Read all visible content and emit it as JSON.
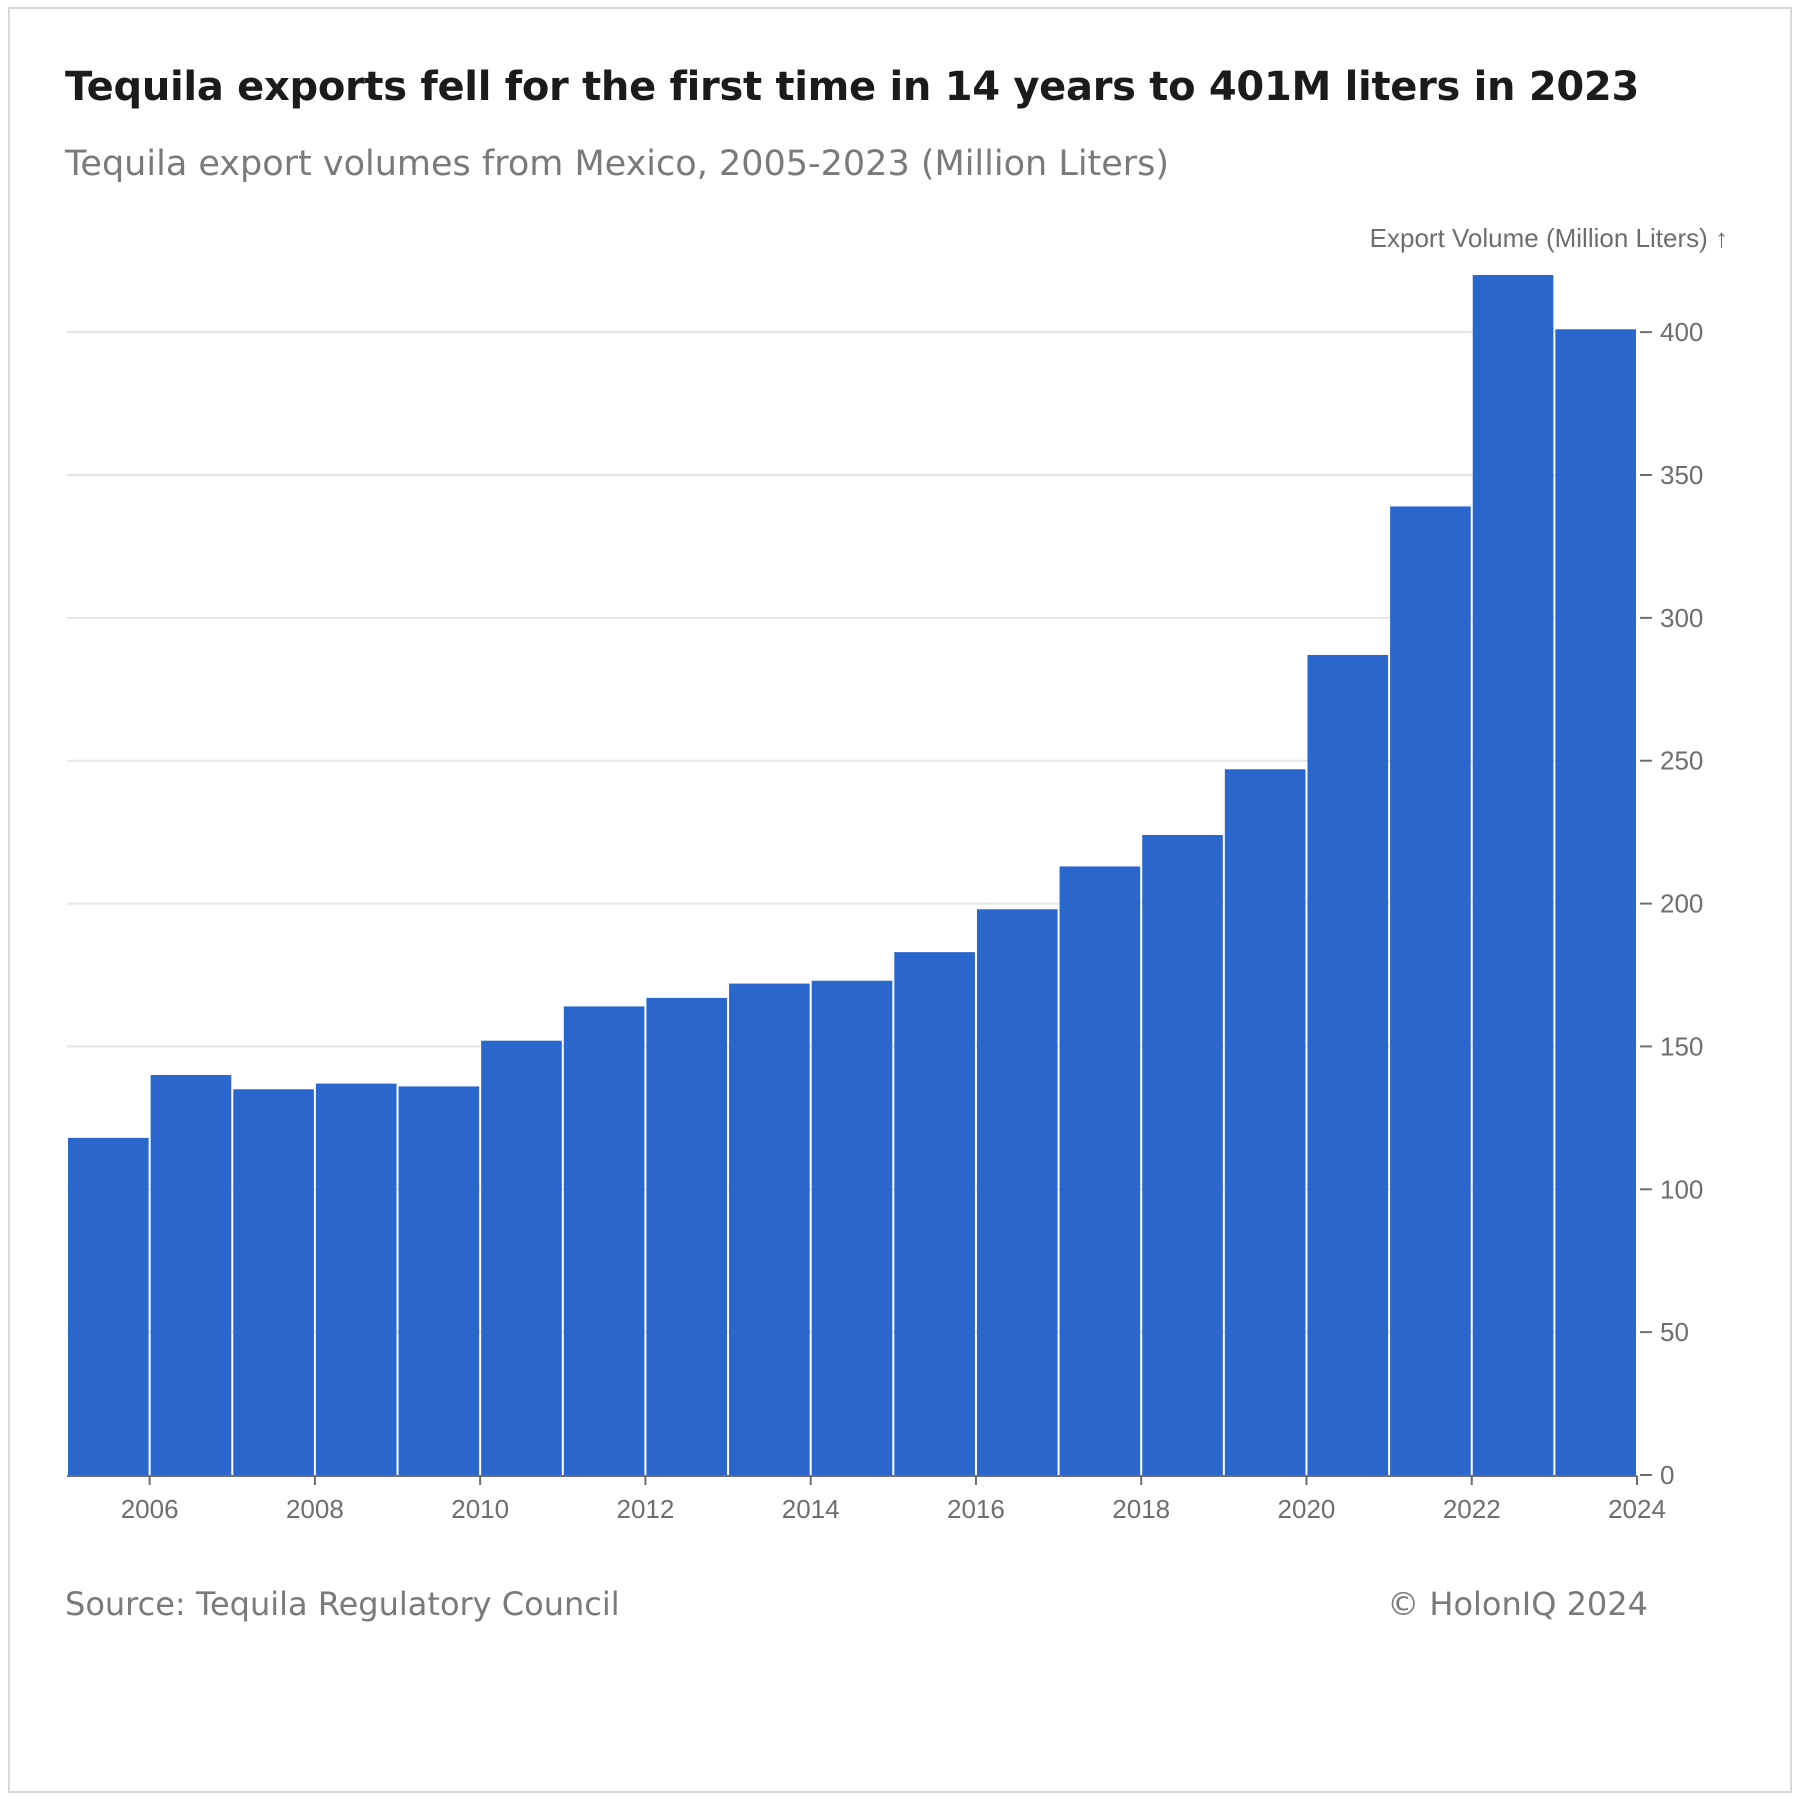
{
  "header": {
    "title": "Tequila exports fell for the first time in 14 years to 401M liters in 2023",
    "subtitle": "Tequila export volumes from Mexico, 2005-2023 (Million Liters)"
  },
  "footer": {
    "source": "Source: Tequila Regulatory Council",
    "copyright": "© HolonIQ 2024"
  },
  "colors": {
    "bar": "#2a66cc",
    "grid": "#e6e6e6",
    "axis": "#6e6e6e"
  },
  "chart_data": {
    "type": "bar",
    "title": "Tequila exports fell for the first time in 14 years to 401M liters in 2023",
    "subtitle": "Tequila export volumes from Mexico, 2005-2023 (Million Liters)",
    "xlabel": "",
    "ylabel": "Export Volume (Million Liters) ↑",
    "y_axis_side": "right",
    "categories": [
      2005,
      2006,
      2007,
      2008,
      2009,
      2010,
      2011,
      2012,
      2013,
      2014,
      2015,
      2016,
      2017,
      2018,
      2019,
      2020,
      2021,
      2022,
      2023
    ],
    "values": [
      118,
      140,
      135,
      137,
      136,
      152,
      164,
      167,
      172,
      173,
      183,
      198,
      213,
      224,
      247,
      287,
      339,
      420,
      401
    ],
    "xlim": [
      2005,
      2024
    ],
    "xticks": [
      2006,
      2008,
      2010,
      2012,
      2014,
      2016,
      2018,
      2020,
      2022,
      2024
    ],
    "ylim": [
      0,
      420
    ],
    "yticks": [
      0,
      50,
      100,
      150,
      200,
      250,
      300,
      350,
      400
    ],
    "grid": true,
    "legend": "none"
  }
}
